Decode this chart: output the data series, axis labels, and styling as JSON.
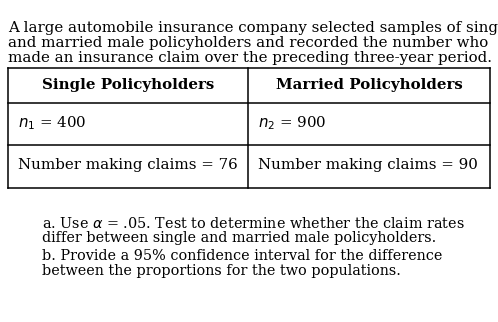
{
  "intro_line1": "A large automobile insurance company selected samples of single",
  "intro_line2": "and married male policyholders and recorded the number who",
  "intro_line3": "made an insurance claim over the preceding three-year period.",
  "col1_header": "Single Policyholders",
  "col2_header": "Married Policyholders",
  "col1_row1": "$n_1$ = 400",
  "col2_row1": "$n_2$ = 900",
  "col1_row2": "Number making claims = 76",
  "col2_row2": "Number making claims = 90",
  "qa_line1": "a. Use $\\alpha$ = .05. Test to determine whether the claim rates",
  "qa_line2": "differ between single and married male policyholders.",
  "qb_line1": "b. Provide a 95% confidence interval for the difference",
  "qb_line2": "between the proportions for the two populations.",
  "bg_color": "#ffffff",
  "text_color": "#000000",
  "font_size_intro": 10.8,
  "font_size_table_header": 10.8,
  "font_size_table_body": 10.8,
  "font_size_questions": 10.4
}
